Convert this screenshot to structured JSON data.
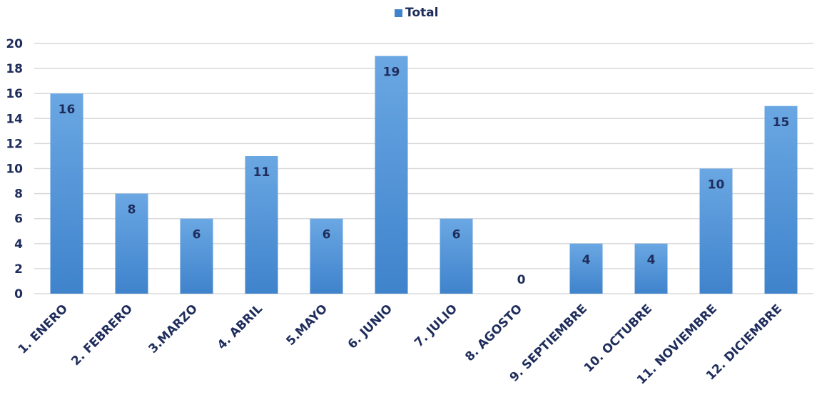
{
  "chart_data": {
    "type": "bar",
    "title": "",
    "xlabel": "",
    "ylabel": "",
    "legend": {
      "entries": [
        "Total"
      ],
      "placement": "top-center"
    },
    "categories": [
      "1. ENERO",
      "2. FEBRERO",
      "3.MARZO",
      "4. ABRIL",
      "5.MAYO",
      "6. JUNIO",
      "7. JULIO",
      "8. AGOSTO",
      "9. SEPTIEMBRE",
      "10. OCTUBRE",
      "11. NOVIEMBRE",
      "12. DICIEMBRE"
    ],
    "series": [
      {
        "name": "Total",
        "values": [
          16,
          8,
          6,
          11,
          6,
          19,
          6,
          0,
          4,
          4,
          10,
          15
        ]
      }
    ],
    "ylim": [
      0,
      20
    ],
    "yticks": [
      0,
      2,
      4,
      6,
      8,
      10,
      12,
      14,
      16,
      18,
      20
    ],
    "grid": true,
    "data_labels": true,
    "colors": {
      "bar_top": "#6aa7e3",
      "bar_bottom": "#3f83cc",
      "text": "#1f2d5c",
      "grid": "#d9d9d9"
    }
  }
}
